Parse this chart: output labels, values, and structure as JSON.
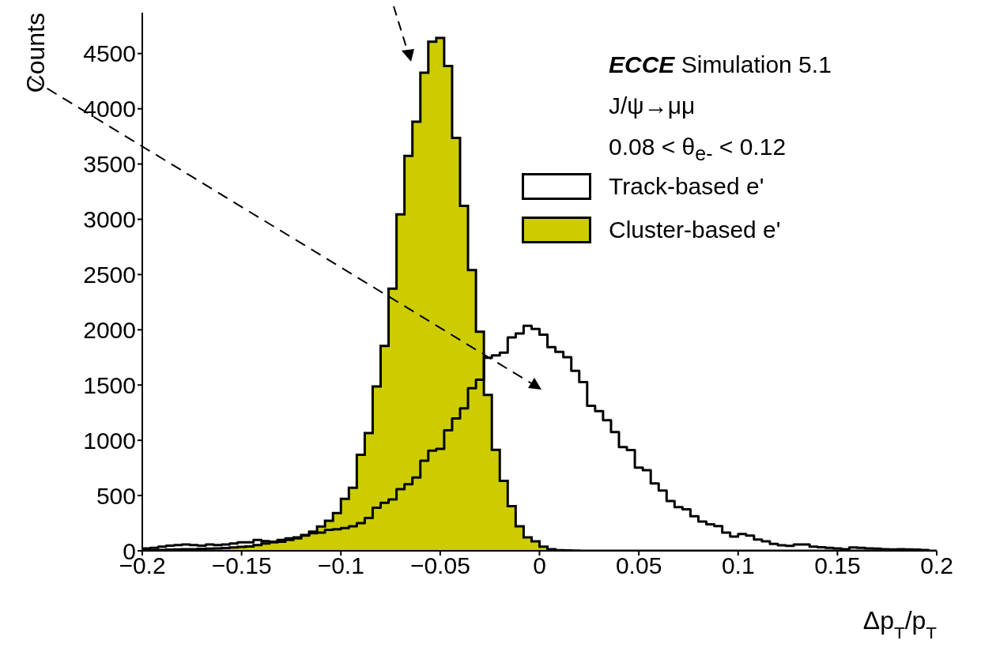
{
  "chart_data": {
    "type": "histogram",
    "xlabel": "Δp$_{T}$/p$_{T}$",
    "ylabel": "Counts",
    "annotations": [
      "ECCE Simulation 5.1",
      "J/ψ→μμ",
      "0.08 < θ$_{e-}$ < 0.12"
    ],
    "bins": [
      -0.2,
      -0.196,
      -0.192,
      -0.188,
      -0.184,
      -0.18,
      -0.176,
      -0.172,
      -0.168,
      -0.164,
      -0.16,
      -0.156,
      -0.152,
      -0.148,
      -0.144,
      -0.14,
      -0.136,
      -0.132,
      -0.128,
      -0.124,
      -0.12,
      -0.116,
      -0.112,
      -0.108,
      -0.104,
      -0.1,
      -0.096,
      -0.092,
      -0.088,
      -0.084,
      -0.08,
      -0.076,
      -0.072,
      -0.068,
      -0.064,
      -0.06,
      -0.056,
      -0.052,
      -0.048,
      -0.044,
      -0.04,
      -0.036,
      -0.032,
      -0.028,
      -0.024,
      -0.02,
      -0.016,
      -0.012,
      -0.008,
      -0.004,
      0,
      0.004,
      0.008,
      0.012,
      0.016,
      0.02,
      0.024,
      0.028,
      0.032,
      0.036,
      0.04,
      0.044,
      0.048,
      0.052,
      0.056,
      0.06,
      0.064,
      0.068,
      0.072,
      0.076,
      0.08,
      0.084,
      0.088,
      0.092,
      0.096,
      0.1,
      0.104,
      0.108,
      0.112,
      0.116,
      0.12,
      0.124,
      0.128,
      0.132,
      0.136,
      0.14,
      0.144,
      0.148,
      0.152,
      0.156,
      0.16,
      0.164,
      0.168,
      0.172,
      0.176,
      0.18,
      0.184,
      0.188,
      0.192,
      0.196,
      0.2
    ],
    "series": [
      {
        "name": "Track-based e'",
        "type": "step",
        "color": "#000000",
        "x": [
          -0.2,
          -0.196,
          -0.192,
          -0.188,
          -0.184,
          -0.18,
          -0.176,
          -0.172,
          -0.168,
          -0.164,
          -0.16,
          -0.156,
          -0.152,
          -0.148,
          -0.144,
          -0.14,
          -0.136,
          -0.132,
          -0.128,
          -0.124,
          -0.12,
          -0.116,
          -0.112,
          -0.108,
          -0.104,
          -0.1,
          -0.096,
          -0.092,
          -0.088,
          -0.084,
          -0.08,
          -0.076,
          -0.072,
          -0.068,
          -0.064,
          -0.06,
          -0.056,
          -0.052,
          -0.048,
          -0.044,
          -0.04,
          -0.036,
          -0.032,
          -0.028,
          -0.024,
          -0.02,
          -0.016,
          -0.012,
          -0.008,
          -0.004,
          0,
          0.004,
          0.008,
          0.012,
          0.016,
          0.02,
          0.024,
          0.028,
          0.032,
          0.036,
          0.04,
          0.044,
          0.048,
          0.052,
          0.056,
          0.06,
          0.064,
          0.068,
          0.072,
          0.076,
          0.08,
          0.084,
          0.088,
          0.092,
          0.096,
          0.1,
          0.104,
          0.108,
          0.112,
          0.116,
          0.12,
          0.124,
          0.128,
          0.132,
          0.136,
          0.14,
          0.144,
          0.148,
          0.152,
          0.156,
          0.16,
          0.164,
          0.168,
          0.172,
          0.176,
          0.18,
          0.184,
          0.188,
          0.192,
          0.196
        ],
        "values": [
          21,
          27,
          37,
          46,
          52,
          58,
          52,
          46,
          58,
          52,
          58,
          67,
          76,
          76,
          98,
          88,
          82,
          98,
          113,
          122,
          137,
          159,
          165,
          189,
          195,
          205,
          221,
          251,
          297,
          389,
          434,
          465,
          557,
          603,
          664,
          816,
          907,
          923,
          1091,
          1198,
          1289,
          1472,
          1549,
          1747,
          1769,
          1793,
          1930,
          1967,
          2037,
          2007,
          1955,
          1843,
          1800,
          1752,
          1629,
          1526,
          1312,
          1264,
          1181,
          1074,
          938,
          912,
          752,
          729,
          610,
          545,
          450,
          395,
          376,
          312,
          264,
          240,
          224,
          164,
          129,
          152,
          138,
          102,
          86,
          62,
          50,
          45,
          57,
          57,
          38,
          33,
          26,
          21,
          14,
          31,
          26,
          21,
          19,
          14,
          12,
          14,
          12,
          10,
          7,
          12
        ]
      },
      {
        "name": "Cluster-based e'",
        "color": "#cccc00",
        "values": [
          5,
          5,
          8,
          10,
          12,
          15,
          15,
          18,
          20,
          22,
          25,
          30,
          35,
          40,
          52,
          67,
          76,
          82,
          98,
          113,
          143,
          174,
          220,
          271,
          342,
          470,
          571,
          868,
          1066,
          1488,
          1854,
          2373,
          3044,
          3573,
          3884,
          4326,
          4607,
          4641,
          4388,
          3737,
          3121,
          2541,
          1982,
          1411,
          914,
          633,
          404,
          221,
          121,
          86,
          38,
          14,
          5,
          3,
          2,
          0,
          0,
          0,
          0,
          0,
          0,
          0,
          0,
          0,
          0,
          0,
          0,
          0,
          0,
          0,
          0,
          0,
          0,
          0,
          0,
          0,
          0,
          0,
          0,
          0,
          0,
          0,
          0,
          0,
          0,
          0,
          0,
          0,
          0,
          0,
          0,
          0,
          0,
          0,
          0,
          0,
          0,
          0,
          0,
          0
        ]
      }
    ],
    "xlim": [
      -0.2,
      0.2
    ],
    "xticks": [
      -0.2,
      -0.15,
      -0.1,
      -0.05,
      0,
      0.05,
      0.1,
      0.15,
      0.2
    ],
    "ylim": [
      0,
      4870
    ],
    "yticks": [
      0,
      500,
      1000,
      1500,
      2000,
      2500,
      3000,
      3500,
      4000,
      4500
    ],
    "legend": "top right"
  }
}
